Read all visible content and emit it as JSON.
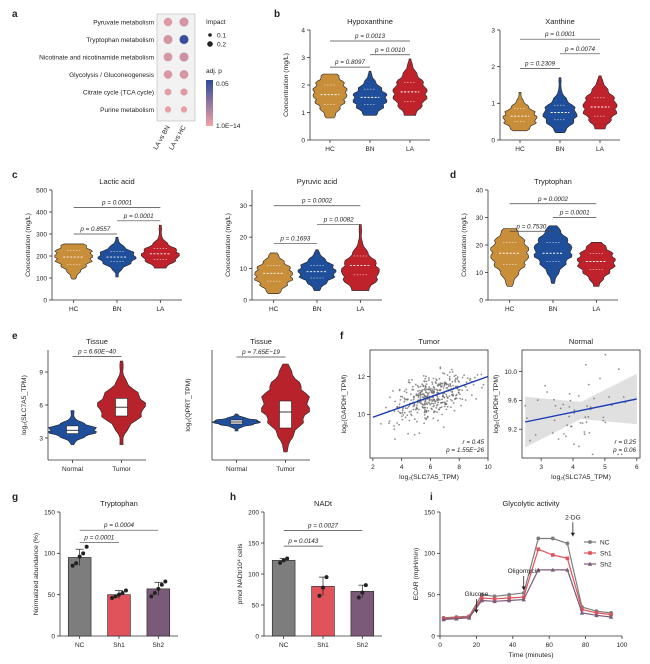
{
  "colors": {
    "hc": "#c98e3a",
    "bn": "#1f4e9a",
    "la": "#c0222b",
    "nc": "#7d7d7d",
    "sh1": "#e0535a",
    "sh2": "#7a5a78",
    "violet_normal": "#1f4e9a",
    "violet_tumor": "#b8232b",
    "reg_line": "#1a3bb5",
    "ci_band": "#d8d8d8",
    "heat_low": "#f3a3a5",
    "heat_high": "#2e4a9c",
    "bubble_border": "#dddddd"
  },
  "panels": {
    "a": "a",
    "b": "b",
    "c": "c",
    "d": "d",
    "e": "e",
    "f": "f",
    "g": "g",
    "h": "h",
    "i": "i"
  },
  "chart_data": [
    {
      "id": "a",
      "type": "heatmap",
      "rows": [
        "Pyruvate metabolism",
        "Tryptophan metabolism",
        "Nicotinate and nicotinamide metabolism",
        "Glycolysis / Gluconeogenesis",
        "Citrate cycle (TCA cycle)",
        "Purine metabolism"
      ],
      "columns": [
        "LA vs BN",
        "LA vs HC"
      ],
      "impact": [
        [
          0.18,
          0.2
        ],
        [
          0.2,
          0.2
        ],
        [
          0.19,
          0.2
        ],
        [
          0.18,
          0.19
        ],
        [
          0.12,
          0.13
        ],
        [
          0.1,
          0.1
        ]
      ],
      "adj_p_color": [
        [
          0.1,
          0.15
        ],
        [
          0.15,
          0.95
        ],
        [
          0.15,
          0.2
        ],
        [
          0.12,
          0.15
        ],
        [
          0.08,
          0.1
        ],
        [
          0.05,
          0.05
        ]
      ],
      "legend": {
        "impact_title": "Impact",
        "impact_values": [
          "0.1",
          "0.2"
        ],
        "color_title": "adj. p",
        "color_max": "0.05",
        "color_min": "1.0E−14"
      }
    },
    {
      "id": "b1",
      "type": "violin",
      "title": "Hypoxanthine",
      "ylabel": "Concentration (mg/L)",
      "categories": [
        "HC",
        "BN",
        "LA"
      ],
      "ylim": [
        0,
        4
      ],
      "yticks": [
        "0",
        "1",
        "2",
        "3",
        "4"
      ],
      "ytick_values": [
        0,
        1,
        2,
        3,
        4
      ],
      "groups": [
        {
          "min": 0.8,
          "q1": 1.3,
          "median": 1.65,
          "q3": 2.0,
          "max": 2.4,
          "peak": 1.7
        },
        {
          "min": 0.9,
          "q1": 1.3,
          "median": 1.55,
          "q3": 1.85,
          "max": 2.5,
          "peak": 1.5
        },
        {
          "min": 0.9,
          "q1": 1.4,
          "median": 1.75,
          "q3": 2.1,
          "max": 2.95,
          "peak": 1.7
        }
      ],
      "comparisons": [
        {
          "from": 0,
          "to": 1,
          "y": 2.65,
          "label": "p = 0.8097"
        },
        {
          "from": 1,
          "to": 2,
          "y": 3.1,
          "label": "p = 0.0010"
        },
        {
          "from": 0,
          "to": 2,
          "y": 3.6,
          "label": "p = 0.0013"
        }
      ]
    },
    {
      "id": "b2",
      "type": "violin",
      "title": "Xanthine",
      "ylabel": "",
      "categories": [
        "HC",
        "BN",
        "LA"
      ],
      "ylim": [
        0,
        3
      ],
      "yticks": [
        "0",
        "1",
        "2",
        "3"
      ],
      "ytick_values": [
        0,
        1,
        2,
        3
      ],
      "groups": [
        {
          "min": 0.25,
          "q1": 0.5,
          "median": 0.65,
          "q3": 0.85,
          "max": 1.3,
          "peak": 0.6
        },
        {
          "min": 0.2,
          "q1": 0.55,
          "median": 0.75,
          "q3": 0.95,
          "max": 1.7,
          "peak": 0.7
        },
        {
          "min": 0.3,
          "q1": 0.65,
          "median": 0.9,
          "q3": 1.15,
          "max": 1.75,
          "peak": 0.9
        }
      ],
      "comparisons": [
        {
          "from": 0,
          "to": 1,
          "y": 1.95,
          "label": "p = 0.2309"
        },
        {
          "from": 1,
          "to": 2,
          "y": 2.35,
          "label": "p = 0.0074"
        },
        {
          "from": 0,
          "to": 2,
          "y": 2.75,
          "label": "p = 0.0001"
        }
      ]
    },
    {
      "id": "c1",
      "type": "violin",
      "title": "Lactic acid",
      "ylabel": "Concentration (mg/L)",
      "categories": [
        "HC",
        "BN",
        "LA"
      ],
      "ylim": [
        0,
        500
      ],
      "yticks": [
        "0",
        "100",
        "200",
        "300",
        "400",
        "500"
      ],
      "ytick_values": [
        0,
        100,
        200,
        300,
        400,
        500
      ],
      "groups": [
        {
          "min": 95,
          "q1": 160,
          "median": 195,
          "q3": 225,
          "max": 255,
          "peak": 200
        },
        {
          "min": 105,
          "q1": 175,
          "median": 195,
          "q3": 220,
          "max": 285,
          "peak": 195
        },
        {
          "min": 145,
          "q1": 185,
          "median": 210,
          "q3": 235,
          "max": 340,
          "peak": 205
        }
      ],
      "comparisons": [
        {
          "from": 0,
          "to": 1,
          "y": 300,
          "label": "p = 0.8557"
        },
        {
          "from": 1,
          "to": 2,
          "y": 360,
          "label": "p = 0.0001"
        },
        {
          "from": 0,
          "to": 2,
          "y": 420,
          "label": "p = 0.0001"
        }
      ]
    },
    {
      "id": "c2",
      "type": "violin",
      "title": "Pyruvic acid",
      "ylabel": "Concentration (mg/L)",
      "categories": [
        "HC",
        "BN",
        "LA"
      ],
      "ylim": [
        0,
        35
      ],
      "yticks": [
        "0",
        "10",
        "20",
        "30"
      ],
      "ytick_values": [
        0,
        10,
        20,
        30
      ],
      "groups": [
        {
          "min": 2,
          "q1": 6,
          "median": 8.5,
          "q3": 11,
          "max": 15,
          "peak": 8
        },
        {
          "min": 3,
          "q1": 7,
          "median": 9,
          "q3": 11,
          "max": 16,
          "peak": 9
        },
        {
          "min": 3,
          "q1": 8,
          "median": 11,
          "q3": 14,
          "max": 24,
          "peak": 9
        }
      ],
      "comparisons": [
        {
          "from": 0,
          "to": 1,
          "y": 18,
          "label": "p = 0.1693"
        },
        {
          "from": 1,
          "to": 2,
          "y": 24,
          "label": "p = 0.0082"
        },
        {
          "from": 0,
          "to": 2,
          "y": 30,
          "label": "p = 0.0002"
        }
      ]
    },
    {
      "id": "d",
      "type": "violin",
      "title": "Tryptophan",
      "ylabel": "Concentration (mg/L)",
      "categories": [
        "HC",
        "BN",
        "LA"
      ],
      "ylim": [
        0,
        40
      ],
      "yticks": [
        "0",
        "10",
        "20",
        "30",
        "40"
      ],
      "ytick_values": [
        0,
        10,
        20,
        30,
        40
      ],
      "groups": [
        {
          "min": 5,
          "q1": 13,
          "median": 17,
          "q3": 21,
          "max": 26,
          "peak": 17
        },
        {
          "min": 6,
          "q1": 14,
          "median": 17,
          "q3": 21,
          "max": 27,
          "peak": 18
        },
        {
          "min": 5,
          "q1": 11,
          "median": 14,
          "q3": 17,
          "max": 21,
          "peak": 14
        }
      ],
      "comparisons": [
        {
          "from": 0,
          "to": 1,
          "y": 25,
          "label": "p = 0.7530"
        },
        {
          "from": 1,
          "to": 2,
          "y": 30,
          "label": "p = 0.0001"
        },
        {
          "from": 0,
          "to": 2,
          "y": 35,
          "label": "p = 0.0002"
        }
      ]
    },
    {
      "id": "e1",
      "type": "violin",
      "title": "Tissue",
      "ylabel": "log₂(SLC7A5_TPM)",
      "categories": [
        "Normal",
        "Tumor"
      ],
      "ylim": [
        1,
        11
      ],
      "yticks": [
        "3",
        "6",
        "9"
      ],
      "ytick_values": [
        3,
        6,
        9
      ],
      "groups": [
        {
          "min": 2.4,
          "q1": 3.4,
          "median": 3.7,
          "q3": 4.1,
          "max": 5.5,
          "peak": 3.7
        },
        {
          "min": 2.4,
          "q1": 5.0,
          "median": 5.8,
          "q3": 6.6,
          "max": 10.0,
          "peak": 5.9
        }
      ],
      "comparisons": [
        {
          "from": 0,
          "to": 1,
          "y": 10.4,
          "label": "p = 6.60E−40"
        }
      ]
    },
    {
      "id": "e2",
      "type": "violin",
      "title": "Tissue",
      "ylabel": "log₂(QPRT_TPM)",
      "categories": [
        "Normal",
        "Tumor"
      ],
      "ylim": [
        0,
        11
      ],
      "yticks": [],
      "ytick_values": [],
      "groups": [
        {
          "min": 2.9,
          "q1": 3.6,
          "median": 3.8,
          "q3": 4.0,
          "max": 4.6,
          "peak": 3.8
        },
        {
          "min": 0.8,
          "q1": 3.2,
          "median": 4.8,
          "q3": 5.9,
          "max": 9.6,
          "peak": 5.5
        }
      ],
      "comparisons": [
        {
          "from": 0,
          "to": 1,
          "y": 10.3,
          "label": "p = 7.65E−19"
        }
      ]
    },
    {
      "id": "f1",
      "type": "scatter",
      "title": "Tumor",
      "xlabel": "log₂(SLC7A5_TPM)",
      "ylabel": "log₂(GAPDH_TPM)",
      "xlim": [
        1.8,
        10
      ],
      "ylim": [
        7.7,
        13.4
      ],
      "xticks": [
        "2",
        "4",
        "6",
        "8",
        "10"
      ],
      "xtick_values": [
        2,
        4,
        6,
        8,
        10
      ],
      "yticks": [
        "10",
        "12"
      ],
      "ytick_values": [
        10,
        12
      ],
      "fit": {
        "x1": 2,
        "y1": 9.85,
        "x2": 10,
        "y2": 12.0
      },
      "n_points": 420,
      "center": {
        "x": 6.0,
        "y": 11.0
      },
      "spread": {
        "x": 1.3,
        "y": 0.55
      },
      "stats": [
        "r = 0.45",
        "p = 1.55E−26"
      ]
    },
    {
      "id": "f2",
      "type": "scatter",
      "title": "Normal",
      "xlabel": "log₂(SLC7A5_TPM)",
      "ylabel": "log₂(GAPDH_TPM)",
      "xlim": [
        2.4,
        6.1
      ],
      "ylim": [
        8.8,
        10.3
      ],
      "xticks": [
        "3",
        "4",
        "5",
        "6"
      ],
      "xtick_values": [
        3,
        4,
        5,
        6
      ],
      "yticks": [
        "9.2",
        "9.6",
        "10.0"
      ],
      "ytick_values": [
        9.2,
        9.6,
        10.0
      ],
      "fit": {
        "x1": 2.5,
        "y1": 9.3,
        "x2": 6.0,
        "y2": 9.62
      },
      "n_points": 55,
      "center": {
        "x": 4.2,
        "y": 9.5
      },
      "spread": {
        "x": 0.9,
        "y": 0.32
      },
      "stats": [
        "r = 0.25",
        "p = 0.06"
      ]
    },
    {
      "id": "g",
      "type": "bar",
      "title": "Tryptophan",
      "ylabel": "Normalized abundance (%)",
      "categories": [
        "NC",
        "Sh1",
        "Sh2"
      ],
      "values": [
        95,
        50,
        57
      ],
      "errors": [
        10,
        5,
        8
      ],
      "points": [
        [
          85,
          88,
          96,
          100,
          108
        ],
        [
          46,
          48,
          50,
          52,
          55
        ],
        [
          48,
          52,
          57,
          62,
          66
        ]
      ],
      "ylim": [
        0,
        150
      ],
      "yticks": [
        "0",
        "50",
        "100",
        "150"
      ],
      "ytick_values": [
        0,
        50,
        100,
        150
      ],
      "comparisons": [
        {
          "from": 0,
          "to": 1,
          "y": 113,
          "label": "p = 0.0001"
        },
        {
          "from": 0,
          "to": 2,
          "y": 128,
          "label": "p = 0.0004"
        }
      ]
    },
    {
      "id": "h",
      "type": "bar",
      "title": "NADt",
      "ylabel": "pmol NADt/10⁴ cells",
      "categories": [
        "NC",
        "Sh1",
        "Sh2"
      ],
      "values": [
        122,
        80,
        72
      ],
      "errors": [
        3,
        15,
        10
      ],
      "points": [
        [
          118,
          122,
          125
        ],
        [
          65,
          78,
          95
        ],
        [
          62,
          70,
          82
        ]
      ],
      "ylim": [
        0,
        200
      ],
      "yticks": [
        "0",
        "50",
        "100",
        "150",
        "200"
      ],
      "ytick_values": [
        0,
        50,
        100,
        150,
        200
      ],
      "comparisons": [
        {
          "from": 0,
          "to": 1,
          "y": 145,
          "label": "p = 0.0143"
        },
        {
          "from": 0,
          "to": 2,
          "y": 170,
          "label": "p = 0.0027"
        }
      ]
    },
    {
      "id": "i",
      "type": "line",
      "title": "Glycolytic activity",
      "xlabel": "Time (minutes)",
      "ylabel": "ECAR (mpH/min)",
      "xlim": [
        0,
        100
      ],
      "ylim": [
        0,
        150
      ],
      "xticks": [
        "0",
        "20",
        "40",
        "60",
        "80",
        "100"
      ],
      "xtick_values": [
        0,
        20,
        40,
        60,
        80,
        100
      ],
      "yticks": [
        "0",
        "50",
        "100",
        "150"
      ],
      "ytick_values": [
        0,
        50,
        100,
        150
      ],
      "x": [
        2,
        9,
        16,
        23,
        30,
        38,
        46,
        54,
        62,
        70,
        78,
        86,
        94
      ],
      "series": [
        {
          "name": "NC",
          "values": [
            22,
            23,
            24,
            50,
            48,
            50,
            52,
            118,
            118,
            112,
            35,
            30,
            28
          ],
          "marker": "circle"
        },
        {
          "name": "Sh1",
          "values": [
            21,
            22,
            23,
            46,
            45,
            46,
            47,
            105,
            98,
            94,
            32,
            28,
            26
          ],
          "marker": "square"
        },
        {
          "name": "Sh2",
          "values": [
            20,
            21,
            22,
            43,
            42,
            43,
            44,
            80,
            80,
            80,
            28,
            25,
            23
          ],
          "marker": "triangle"
        }
      ],
      "annotations": [
        {
          "label": "Glucose",
          "x": 20,
          "y": 24
        },
        {
          "label": "Oligomycin",
          "x": 46,
          "y": 52
        },
        {
          "label": "2-DG",
          "x": 73,
          "y": 117
        }
      ]
    }
  ]
}
